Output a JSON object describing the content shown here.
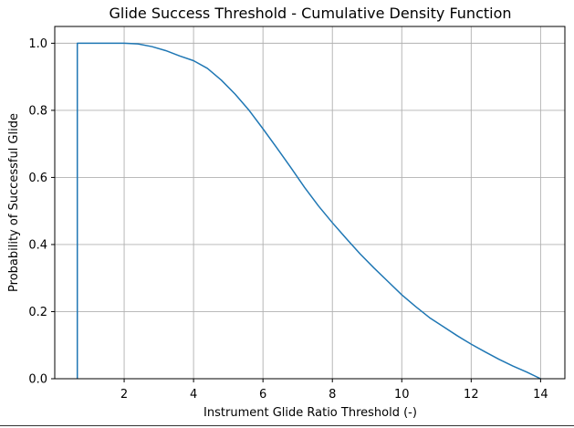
{
  "chart_data": {
    "type": "line",
    "title": "Glide Success Threshold - Cumulative Density Function",
    "xlabel": "Instrument Glide Ratio Threshold (-)",
    "ylabel": "Probability of Successful Glide",
    "xlim": [
      0.0,
      14.7
    ],
    "ylim": [
      0.0,
      1.05
    ],
    "xticks": [
      2,
      4,
      6,
      8,
      10,
      12,
      14
    ],
    "xtick_labels": [
      "2",
      "4",
      "6",
      "8",
      "10",
      "12",
      "14"
    ],
    "yticks": [
      0.0,
      0.2,
      0.4,
      0.6,
      0.8,
      1.0
    ],
    "ytick_labels": [
      "0.0",
      "0.2",
      "0.4",
      "0.6",
      "0.8",
      "1.0"
    ],
    "grid": true,
    "colors": {
      "line": "#1f77b4",
      "grid": "#b0b0b0",
      "axes": "#000000"
    },
    "series": [
      {
        "x": [
          0.65,
          0.65,
          1.0,
          2.0,
          2.4,
          2.8,
          3.2,
          3.6,
          4.0,
          4.4,
          4.8,
          5.2,
          5.6,
          6.0,
          6.4,
          6.8,
          7.2,
          7.6,
          8.0,
          8.4,
          8.8,
          9.2,
          9.6,
          10.0,
          10.4,
          10.8,
          11.2,
          11.6,
          12.0,
          12.4,
          12.8,
          13.2,
          13.6,
          14.0
        ],
        "y": [
          0.0,
          1.0,
          1.0,
          1.0,
          0.998,
          0.99,
          0.978,
          0.962,
          0.948,
          0.925,
          0.89,
          0.848,
          0.8,
          0.745,
          0.688,
          0.63,
          0.57,
          0.515,
          0.465,
          0.418,
          0.372,
          0.33,
          0.29,
          0.25,
          0.215,
          0.182,
          0.155,
          0.128,
          0.103,
          0.08,
          0.058,
          0.038,
          0.02,
          0.0
        ]
      }
    ]
  }
}
